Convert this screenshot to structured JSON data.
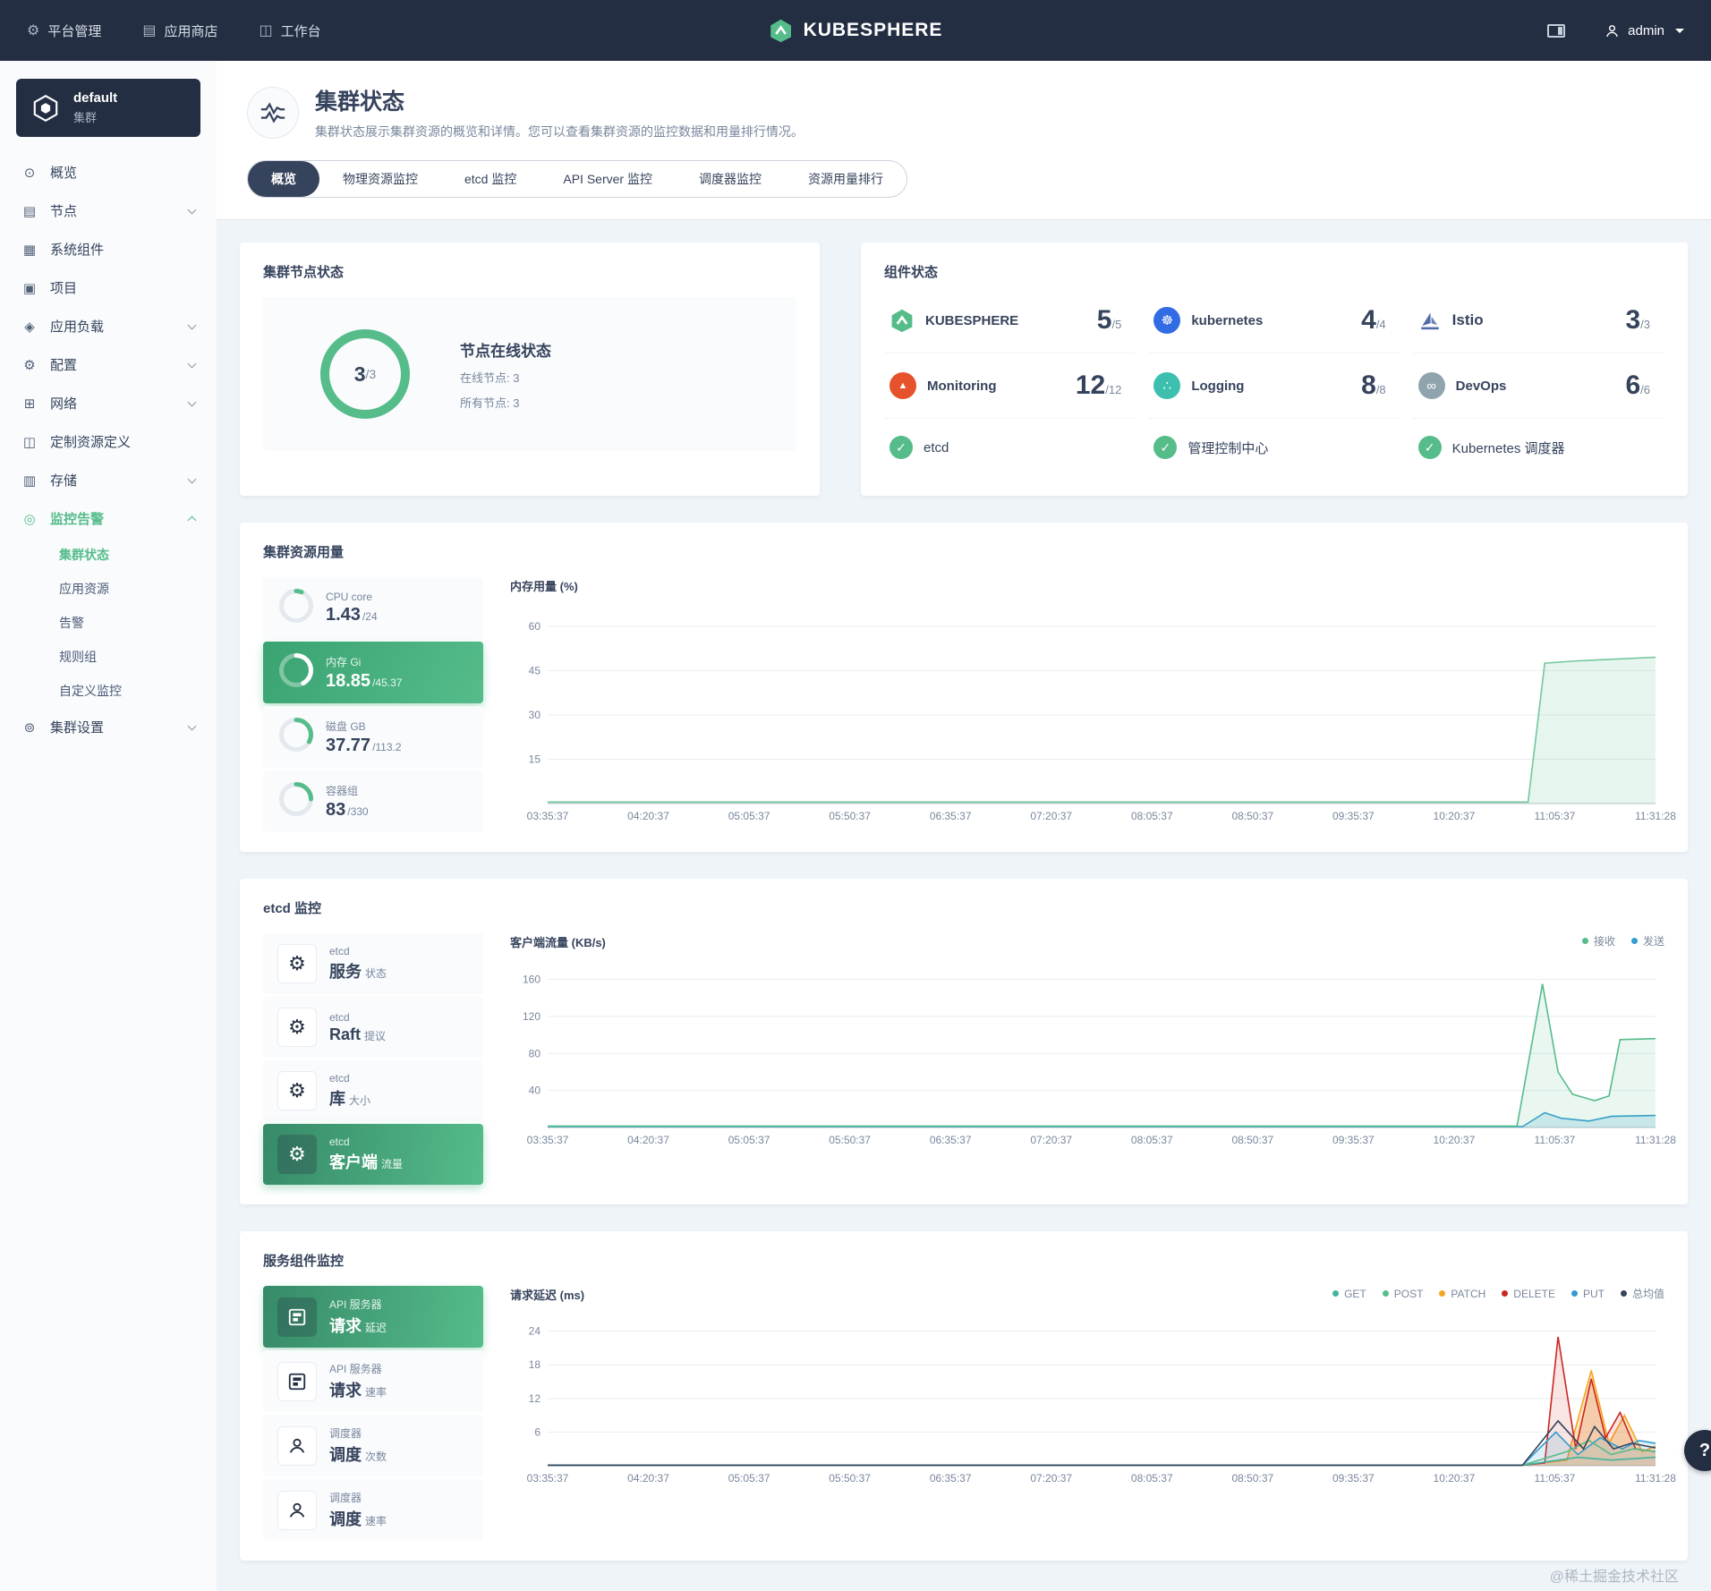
{
  "colors": {
    "accent": "#55bc8a",
    "navbar_bg": "#242e42",
    "tab_active_bg": "#36435c",
    "warning": "#f5a623",
    "danger": "#ca2621",
    "info": "#329dce"
  },
  "icons": {
    "platform": "⚙",
    "appstore": "▤",
    "workbench": "◫",
    "overview": "⊙",
    "nodes": "▤",
    "components": "▦",
    "projects": "▣",
    "workloads": "◈",
    "config": "⚙",
    "network": "⊞",
    "crd": "◫",
    "storage": "▥",
    "monitoring": "◎",
    "settings": "⊚",
    "etcd": "⚙",
    "k8s": "☸",
    "devops": "∞",
    "logging": "∴",
    "prometheus": "▲",
    "check": "✓",
    "help": "?"
  },
  "navbar": {
    "platform": "平台管理",
    "appstore": "应用商店",
    "workbench": "工作台",
    "brand": "KUBESPHERE",
    "user": "admin"
  },
  "sidebar": {
    "cluster_name": "default",
    "cluster_type": "集群",
    "menu": [
      {
        "label": "概览"
      },
      {
        "label": "节点"
      },
      {
        "label": "系统组件"
      },
      {
        "label": "项目"
      },
      {
        "label": "应用负载"
      },
      {
        "label": "配置"
      },
      {
        "label": "网络"
      },
      {
        "label": "定制资源定义"
      },
      {
        "label": "存储"
      },
      {
        "label": "监控告警"
      },
      {
        "label": "集群设置"
      }
    ],
    "submenu": [
      {
        "label": "集群状态"
      },
      {
        "label": "应用资源"
      },
      {
        "label": "告警"
      },
      {
        "label": "规则组"
      },
      {
        "label": "自定义监控"
      }
    ]
  },
  "header": {
    "title": "集群状态",
    "description": "集群状态展示集群资源的概览和详情。您可以查看集群资源的监控数据和用量排行情况。",
    "tabs": [
      "概览",
      "物理资源监控",
      "etcd 监控",
      "API Server 监控",
      "调度器监控",
      "资源用量排行"
    ]
  },
  "nodes": {
    "card_title": "集群节点状态",
    "donut_frac": "1",
    "donut_value": "3",
    "donut_total": "/3",
    "status_title": "节点在线状态",
    "online_label": "在线节点: 3",
    "all_label": "所有节点: 3"
  },
  "components": {
    "card_title": "组件状态",
    "items": [
      {
        "name": "KUBESPHERE",
        "value": "5",
        "total": "/5"
      },
      {
        "name": "kubernetes",
        "value": "4",
        "total": "/4"
      },
      {
        "name": "Istio",
        "value": "3",
        "total": "/3"
      },
      {
        "name": "Monitoring",
        "value": "12",
        "total": "/12"
      },
      {
        "name": "Logging",
        "value": "8",
        "total": "/8"
      },
      {
        "name": "DevOps",
        "value": "6",
        "total": "/6"
      }
    ],
    "checks": [
      {
        "name": "etcd"
      },
      {
        "name": "管理控制中心"
      },
      {
        "name": "Kubernetes 调度器"
      }
    ]
  },
  "usage": {
    "card_title": "集群资源用量",
    "items": [
      {
        "label": "CPU core",
        "value": "1.43",
        "total": "/24",
        "frac": "0.06"
      },
      {
        "label": "内存 Gi",
        "value": "18.85",
        "total": "/45.37",
        "frac": "0.42"
      },
      {
        "label": "磁盘 GB",
        "value": "37.77",
        "total": "/113.2",
        "frac": "0.33"
      },
      {
        "label": "容器组",
        "value": "83",
        "total": "/330",
        "frac": "0.25"
      }
    ]
  },
  "etcd": {
    "card_title": "etcd 监控",
    "items": [
      {
        "group": "etcd",
        "title": "服务",
        "suffix": "状态"
      },
      {
        "group": "etcd",
        "title": "Raft",
        "suffix": "提议"
      },
      {
        "group": "etcd",
        "title": "库",
        "suffix": "大小"
      },
      {
        "group": "etcd",
        "title": "客户端",
        "suffix": "流量"
      }
    ]
  },
  "service": {
    "card_title": "服务组件监控",
    "items": [
      {
        "group": "API 服务器",
        "title": "请求",
        "suffix": "延迟"
      },
      {
        "group": "API 服务器",
        "title": "请求",
        "suffix": "速率"
      },
      {
        "group": "调度器",
        "title": "调度",
        "suffix": "次数"
      },
      {
        "group": "调度器",
        "title": "调度",
        "suffix": "速率"
      }
    ]
  },
  "charts": {
    "memory": {
      "type": "area",
      "title": "内存用量 (%)",
      "yticks": [
        15,
        30,
        45,
        60
      ],
      "ymax": 66,
      "xlabels": [
        "03:35:37",
        "04:20:37",
        "05:05:37",
        "05:50:37",
        "06:35:37",
        "07:20:37",
        "08:05:37",
        "08:50:37",
        "09:35:37",
        "10:20:37",
        "11:05:37",
        "11:31:28"
      ],
      "series": [
        {
          "name": "内存用量",
          "color": "#73c79c",
          "fill": "rgba(115,199,156,0.18)",
          "points": [
            [
              0,
              0.5
            ],
            [
              0.885,
              0.5
            ],
            [
              0.9,
              47.5
            ],
            [
              0.93,
              48.3
            ],
            [
              0.97,
              49
            ],
            [
              1,
              49.5
            ]
          ]
        }
      ]
    },
    "etcd_traffic": {
      "type": "line",
      "title": "客户端流量 (KB/s)",
      "yticks": [
        40,
        80,
        120,
        160
      ],
      "ymax": 176,
      "xlabels": [
        "03:35:37",
        "04:20:37",
        "05:05:37",
        "05:50:37",
        "06:35:37",
        "07:20:37",
        "08:05:37",
        "08:50:37",
        "09:35:37",
        "10:20:37",
        "11:05:37",
        "11:31:28"
      ],
      "legend": [
        {
          "label": "接收",
          "color": "#55bc8a"
        },
        {
          "label": "发送",
          "color": "#329dce"
        }
      ],
      "series": [
        {
          "name": "发送",
          "color": "#329dce",
          "fill": "rgba(50,157,206,0.18)",
          "points": [
            [
              0,
              1
            ],
            [
              0.88,
              1
            ],
            [
              0.9,
              16
            ],
            [
              0.915,
              10
            ],
            [
              0.94,
              7
            ],
            [
              0.96,
              12
            ],
            [
              1,
              13
            ]
          ]
        },
        {
          "name": "接收",
          "color": "#55bc8a",
          "fill": "rgba(85,188,138,0.12)",
          "points": [
            [
              0,
              1.5
            ],
            [
              0.875,
              1.5
            ],
            [
              0.898,
              155
            ],
            [
              0.912,
              60
            ],
            [
              0.925,
              36
            ],
            [
              0.945,
              29
            ],
            [
              0.958,
              34
            ],
            [
              0.968,
              95
            ],
            [
              1,
              96
            ]
          ]
        }
      ]
    },
    "latency": {
      "type": "line",
      "title": "请求延迟 (ms)",
      "yticks": [
        6,
        12,
        18,
        24
      ],
      "ymax": 26.5,
      "xlabels": [
        "03:35:37",
        "04:20:37",
        "05:05:37",
        "05:50:37",
        "06:35:37",
        "07:20:37",
        "08:05:37",
        "08:50:37",
        "09:35:37",
        "10:20:37",
        "11:05:37",
        "11:31:28"
      ],
      "legend": [
        {
          "label": "GET",
          "color": "#42b39c"
        },
        {
          "label": "POST",
          "color": "#55bc8a"
        },
        {
          "label": "PATCH",
          "color": "#f5a623"
        },
        {
          "label": "DELETE",
          "color": "#ca2621"
        },
        {
          "label": "PUT",
          "color": "#329dce"
        },
        {
          "label": "总均值",
          "color": "#36435c"
        }
      ],
      "series": [
        {
          "name": "PATCH",
          "color": "#f5a623",
          "fill": "rgba(245,166,35,0.30)",
          "points": [
            [
              0,
              0.1
            ],
            [
              0.88,
              0.1
            ],
            [
              0.92,
              1
            ],
            [
              0.942,
              17
            ],
            [
              0.958,
              4
            ],
            [
              0.972,
              9
            ],
            [
              0.988,
              2.5
            ],
            [
              1,
              3.5
            ]
          ]
        },
        {
          "name": "DELETE",
          "color": "#ca2621",
          "fill": "rgba(202,38,33,0.12)",
          "points": [
            [
              0,
              0.1
            ],
            [
              0.88,
              0.1
            ],
            [
              0.9,
              0.5
            ],
            [
              0.912,
              23
            ],
            [
              0.928,
              3
            ],
            [
              0.942,
              15.5
            ],
            [
              0.955,
              5
            ],
            [
              0.968,
              9.5
            ],
            [
              0.982,
              3
            ],
            [
              1,
              2.5
            ]
          ]
        },
        {
          "name": "PUT",
          "color": "#329dce",
          "fill": "rgba(50,157,206,0.15)",
          "points": [
            [
              0,
              0.1
            ],
            [
              0.88,
              0.1
            ],
            [
              0.91,
              6
            ],
            [
              0.93,
              2
            ],
            [
              0.95,
              5
            ],
            [
              0.97,
              3
            ],
            [
              0.985,
              4.5
            ],
            [
              1,
              4
            ]
          ]
        },
        {
          "name": "POST",
          "color": "#55bc8a",
          "points": [
            [
              0,
              0.1
            ],
            [
              0.88,
              0.1
            ],
            [
              0.92,
              2.5
            ],
            [
              0.94,
              4.5
            ],
            [
              0.96,
              2
            ],
            [
              0.98,
              3
            ],
            [
              1,
              2.5
            ]
          ]
        },
        {
          "name": "GET",
          "color": "#42b39c",
          "points": [
            [
              0,
              0.1
            ],
            [
              0.88,
              0.1
            ],
            [
              0.93,
              1.5
            ],
            [
              0.96,
              1
            ],
            [
              1,
              1.5
            ]
          ]
        },
        {
          "name": "总均值",
          "color": "#36435c",
          "points": [
            [
              0,
              0.1
            ],
            [
              0.88,
              0.1
            ],
            [
              0.912,
              8
            ],
            [
              0.935,
              3
            ],
            [
              0.945,
              7
            ],
            [
              0.962,
              3
            ],
            [
              0.978,
              4
            ],
            [
              1,
              3.2
            ]
          ]
        }
      ]
    }
  },
  "watermark": "@稀土掘金技术社区"
}
